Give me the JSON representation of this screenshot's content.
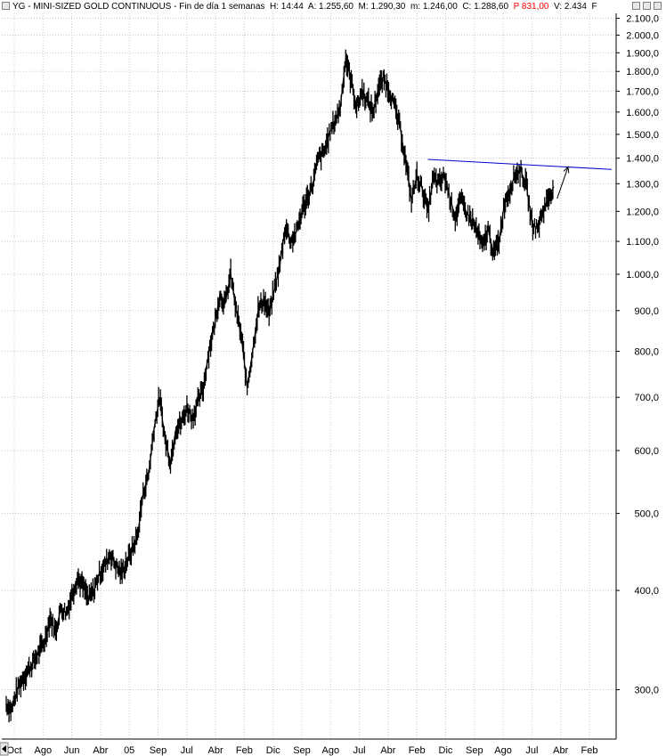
{
  "header": {
    "symbol": "YG",
    "name": "MINI-SIZED GOLD CONTINUOUS",
    "period": "Fin de día 1 semanas",
    "high_label": "H:",
    "high": "14:44",
    "open_label": "A:",
    "open": "1.255,60",
    "max_label": "M:",
    "max": "1.290,30",
    "min_label": "m:",
    "min": "1.246,00",
    "close_label": "C:",
    "close": "1.288,60",
    "p_label": "P",
    "p_value": "831,00",
    "v_label": "V:",
    "v_value": "2.434",
    "f_label": "F"
  },
  "colors": {
    "price": "#000000",
    "trendline": "#0000cc",
    "grid": "#c8c8c8",
    "accent": "#ff0000"
  },
  "chart_data": {
    "type": "line",
    "title": "YG - MINI-SIZED GOLD CONTINUOUS",
    "y_scale": "log",
    "ylim": [
      260,
      2130
    ],
    "y_ticks": [
      {
        "value": 300,
        "label": "300,0"
      },
      {
        "value": 400,
        "label": "400,0"
      },
      {
        "value": 500,
        "label": "500,0"
      },
      {
        "value": 600,
        "label": "600,0"
      },
      {
        "value": 700,
        "label": "700,0"
      },
      {
        "value": 800,
        "label": "800,0"
      },
      {
        "value": 900,
        "label": "900,0"
      },
      {
        "value": 1000,
        "label": "1.000,0"
      },
      {
        "value": 1100,
        "label": "1.100,0"
      },
      {
        "value": 1200,
        "label": "1.200,0"
      },
      {
        "value": 1300,
        "label": "1.300,0"
      },
      {
        "value": 1400,
        "label": "1.400,0"
      },
      {
        "value": 1500,
        "label": "1.500,0"
      },
      {
        "value": 1600,
        "label": "1.600,0"
      },
      {
        "value": 1700,
        "label": "1.700,0"
      },
      {
        "value": 1800,
        "label": "1.800,0"
      },
      {
        "value": 1900,
        "label": "1.900,0"
      },
      {
        "value": 2000,
        "label": "2.000,0"
      },
      {
        "value": 2100,
        "label": "2.100,0"
      }
    ],
    "x_ticks": [
      "Oct",
      "Ago",
      "Jun",
      "Abr",
      "05",
      "Sep",
      "Jul",
      "Abr",
      "Feb",
      "Dic",
      "Sep",
      "Ago",
      "Jul",
      "Abr",
      "Feb",
      "Dic",
      "Sep",
      "Ago",
      "Jul",
      "Abr",
      "Feb"
    ],
    "x_range": [
      0,
      52
    ],
    "grid": true,
    "series": [
      {
        "values": [
          [
            0.0,
            288
          ],
          [
            0.5,
            283
          ],
          [
            1.0,
            300
          ],
          [
            1.5,
            310
          ],
          [
            2.0,
            318
          ],
          [
            2.5,
            325
          ],
          [
            3.0,
            335
          ],
          [
            3.5,
            345
          ],
          [
            4.0,
            370
          ],
          [
            4.5,
            355
          ],
          [
            5.0,
            380
          ],
          [
            5.5,
            375
          ],
          [
            6.0,
            395
          ],
          [
            6.5,
            415
          ],
          [
            7.0,
            405
          ],
          [
            7.5,
            390
          ],
          [
            8.0,
            400
          ],
          [
            8.5,
            420
          ],
          [
            9.0,
            430
          ],
          [
            9.5,
            445
          ],
          [
            10.0,
            430
          ],
          [
            10.5,
            420
          ],
          [
            11.0,
            435
          ],
          [
            11.5,
            450
          ],
          [
            12.0,
            470
          ],
          [
            12.5,
            530
          ],
          [
            13.0,
            560
          ],
          [
            13.5,
            640
          ],
          [
            14.0,
            700
          ],
          [
            14.5,
            620
          ],
          [
            15.0,
            580
          ],
          [
            15.5,
            640
          ],
          [
            16.0,
            650
          ],
          [
            16.5,
            680
          ],
          [
            17.0,
            660
          ],
          [
            17.5,
            690
          ],
          [
            18.0,
            720
          ],
          [
            18.5,
            800
          ],
          [
            19.0,
            860
          ],
          [
            19.5,
            940
          ],
          [
            20.0,
            920
          ],
          [
            20.5,
            1000
          ],
          [
            21.0,
            900
          ],
          [
            21.5,
            830
          ],
          [
            22.0,
            720
          ],
          [
            22.5,
            800
          ],
          [
            23.0,
            900
          ],
          [
            23.5,
            930
          ],
          [
            24.0,
            890
          ],
          [
            24.5,
            960
          ],
          [
            25.0,
            1030
          ],
          [
            25.5,
            1150
          ],
          [
            26.0,
            1100
          ],
          [
            26.5,
            1130
          ],
          [
            27.0,
            1200
          ],
          [
            27.5,
            1250
          ],
          [
            28.0,
            1300
          ],
          [
            28.5,
            1400
          ],
          [
            29.0,
            1420
          ],
          [
            29.5,
            1500
          ],
          [
            30.0,
            1560
          ],
          [
            30.5,
            1620
          ],
          [
            31.0,
            1870
          ],
          [
            31.5,
            1750
          ],
          [
            32.0,
            1620
          ],
          [
            32.5,
            1700
          ],
          [
            33.0,
            1650
          ],
          [
            33.5,
            1600
          ],
          [
            34.0,
            1720
          ],
          [
            34.5,
            1760
          ],
          [
            35.0,
            1700
          ],
          [
            35.5,
            1620
          ],
          [
            36.0,
            1520
          ],
          [
            36.5,
            1380
          ],
          [
            37.0,
            1240
          ],
          [
            37.5,
            1330
          ],
          [
            38.0,
            1280
          ],
          [
            38.5,
            1200
          ],
          [
            39.0,
            1320
          ],
          [
            39.5,
            1300
          ],
          [
            40.0,
            1330
          ],
          [
            40.5,
            1250
          ],
          [
            41.0,
            1180
          ],
          [
            41.5,
            1240
          ],
          [
            42.0,
            1200
          ],
          [
            42.5,
            1170
          ],
          [
            43.0,
            1130
          ],
          [
            43.5,
            1080
          ],
          [
            44.0,
            1140
          ],
          [
            44.5,
            1060
          ],
          [
            45.0,
            1100
          ],
          [
            45.5,
            1230
          ],
          [
            46.0,
            1280
          ],
          [
            46.5,
            1340
          ],
          [
            47.0,
            1350
          ],
          [
            47.5,
            1290
          ],
          [
            48.0,
            1160
          ],
          [
            48.5,
            1140
          ],
          [
            49.0,
            1200
          ],
          [
            49.5,
            1250
          ],
          [
            50.0,
            1288.6
          ]
        ]
      }
    ],
    "annotations": [
      {
        "type": "trendline",
        "from": [
          38.5,
          1395
        ],
        "to": [
          54.0,
          1355
        ]
      },
      {
        "type": "arrow",
        "from": [
          50.3,
          1245
        ],
        "to": [
          51.3,
          1365
        ]
      }
    ]
  }
}
